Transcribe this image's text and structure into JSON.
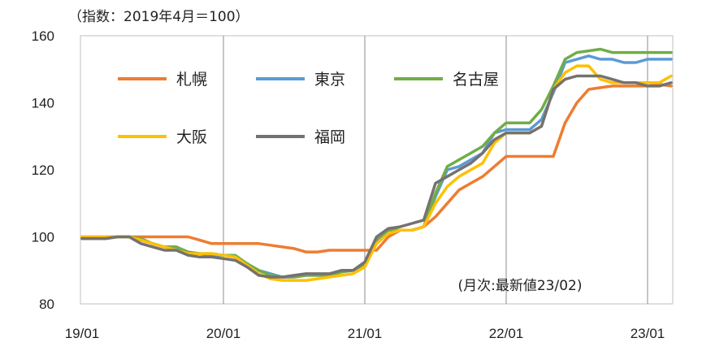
{
  "chart_data": {
    "type": "line",
    "unit_label": "（指数：2019年4月＝100）",
    "note": "(月次:最新値23/02)",
    "x_tick_labels": [
      "19/01",
      "20/01",
      "21/01",
      "22/01",
      "23/01"
    ],
    "x_ticks_month_index": [
      0,
      12,
      24,
      36,
      48
    ],
    "y_ticks": [
      80,
      100,
      120,
      140,
      160
    ],
    "ylim": [
      80,
      160
    ],
    "x_range_month_index": [
      0,
      50
    ],
    "grid": "vertical lines at each January",
    "legend_placement": "top-left inside plot",
    "series": [
      {
        "name": "札幌",
        "color": "#ED7D31",
        "values": [
          100,
          100,
          100,
          100,
          100,
          100,
          100,
          100,
          100,
          100,
          99,
          98,
          98,
          98,
          98,
          98,
          97.5,
          97,
          96.5,
          95.5,
          95.5,
          96,
          96,
          96,
          96,
          96,
          100,
          102,
          102,
          103,
          106,
          110,
          114,
          116,
          118,
          121,
          124,
          124,
          124,
          124,
          124,
          134,
          140,
          144,
          144.5,
          145,
          145,
          145,
          145,
          145.5,
          145
        ]
      },
      {
        "name": "東京",
        "color": "#5B9BD5",
        "values": [
          99.5,
          99.5,
          99.5,
          100,
          100,
          99,
          98,
          97,
          97,
          95,
          95,
          94.5,
          94.5,
          94,
          92,
          90,
          89,
          88,
          88,
          88.5,
          88.5,
          88.5,
          89.5,
          90,
          92,
          99,
          101,
          102,
          102,
          103,
          112,
          120,
          121,
          123,
          125,
          131,
          132,
          132,
          132,
          135,
          143,
          152,
          153,
          154,
          153,
          153,
          152,
          152,
          153,
          153,
          153
        ]
      },
      {
        "name": "名古屋",
        "color": "#70AD47",
        "values": [
          99.5,
          99.5,
          99.5,
          100,
          100,
          99.5,
          98,
          97,
          97,
          95.5,
          95,
          95,
          94.5,
          94.5,
          92,
          90,
          88.5,
          88,
          88,
          88.5,
          88.5,
          88.5,
          89.5,
          90,
          92,
          99.5,
          102,
          102,
          102,
          103,
          113,
          121,
          123,
          125,
          127,
          131,
          134,
          134,
          134,
          138,
          145,
          153,
          155,
          155.5,
          156,
          155,
          155,
          155,
          155,
          155,
          155
        ]
      },
      {
        "name": "大阪",
        "color": "#FFC000",
        "values": [
          100,
          100,
          100,
          100,
          100,
          99,
          98,
          97,
          96,
          95,
          95,
          95,
          94.5,
          94,
          91.5,
          89,
          87.5,
          87,
          87,
          87,
          87.5,
          88,
          88.5,
          89,
          91,
          98,
          101,
          102,
          102,
          103,
          110,
          115,
          118,
          120,
          122,
          128,
          131,
          131,
          131,
          133,
          144,
          149,
          151,
          151,
          147,
          146,
          146,
          146,
          146,
          146,
          148
        ]
      },
      {
        "name": "福岡",
        "color": "#767171",
        "values": [
          99.5,
          99.5,
          99.5,
          100,
          100,
          98,
          97,
          96,
          96,
          94.5,
          94,
          94,
          93.5,
          93,
          91,
          88.5,
          88,
          88,
          88.5,
          89,
          89,
          89,
          90,
          90,
          92.5,
          100,
          102.5,
          103,
          104,
          105,
          116,
          118,
          120,
          122,
          125,
          129,
          131,
          131,
          131,
          133,
          144,
          147,
          148,
          148,
          148,
          147,
          146,
          146,
          145,
          145,
          146
        ]
      }
    ]
  }
}
